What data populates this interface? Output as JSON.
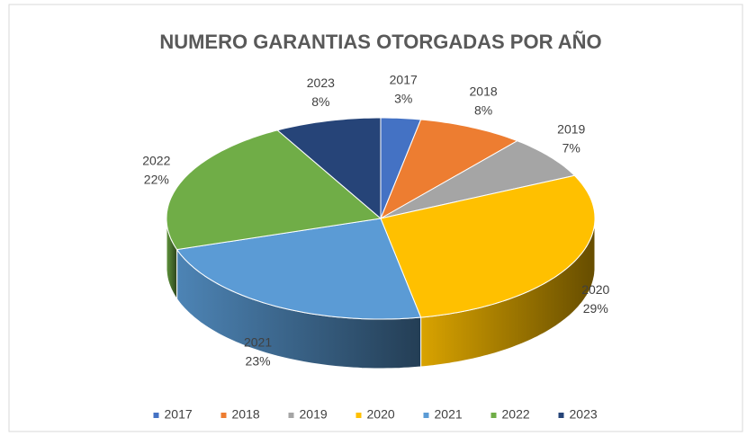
{
  "chart_data": {
    "type": "pie3d",
    "title": "NUMERO GARANTIAS OTORGADAS POR AÑO",
    "categories": [
      "2017",
      "2018",
      "2019",
      "2020",
      "2021",
      "2022",
      "2023"
    ],
    "values": [
      3,
      8,
      7,
      29,
      23,
      22,
      8
    ],
    "value_labels": [
      "3%",
      "8%",
      "7%",
      "29%",
      "23%",
      "22%",
      "8%"
    ],
    "colors": [
      "#4472c4",
      "#ed7d31",
      "#a5a5a5",
      "#ffc000",
      "#5b9bd5",
      "#70ad47",
      "#264478"
    ],
    "legend": "bottom"
  }
}
